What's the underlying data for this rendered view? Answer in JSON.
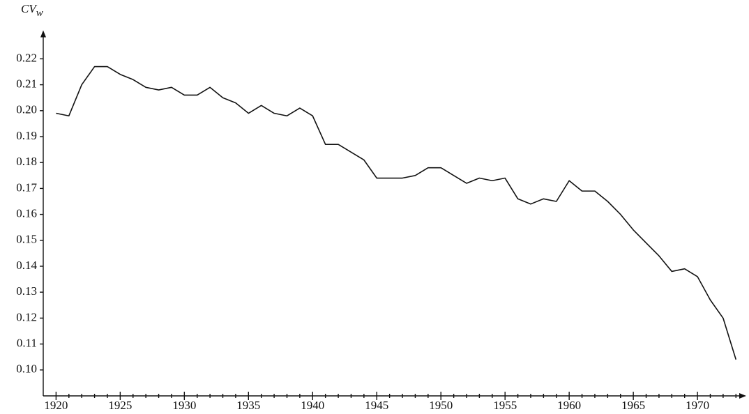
{
  "chart_data": {
    "type": "line",
    "ylabel": "CV",
    "ylabel_sub": "w",
    "x": [
      1920,
      1921,
      1922,
      1923,
      1924,
      1925,
      1926,
      1927,
      1928,
      1929,
      1930,
      1931,
      1932,
      1933,
      1934,
      1935,
      1936,
      1937,
      1938,
      1939,
      1940,
      1941,
      1942,
      1943,
      1944,
      1945,
      1946,
      1947,
      1948,
      1949,
      1950,
      1951,
      1952,
      1953,
      1954,
      1955,
      1956,
      1957,
      1958,
      1959,
      1960,
      1961,
      1962,
      1963,
      1964,
      1965,
      1966,
      1967,
      1968,
      1969,
      1970,
      1971,
      1972,
      1973
    ],
    "series": [
      {
        "color": "#111111",
        "values": [
          0.199,
          0.198,
          0.21,
          0.217,
          0.217,
          0.214,
          0.212,
          0.209,
          0.208,
          0.209,
          0.206,
          0.206,
          0.209,
          0.205,
          0.203,
          0.199,
          0.202,
          0.199,
          0.198,
          0.201,
          0.198,
          0.187,
          0.187,
          0.184,
          0.181,
          0.174,
          0.174,
          0.174,
          0.175,
          0.178,
          0.178,
          0.175,
          0.172,
          0.174,
          0.173,
          0.174,
          0.166,
          0.164,
          0.166,
          0.165,
          0.173,
          0.169,
          0.169,
          0.165,
          0.16,
          0.154,
          0.149,
          0.144,
          0.138,
          0.139,
          0.136,
          0.127,
          0.12,
          0.104
        ]
      }
    ],
    "xlim": [
      1919,
      1973.8
    ],
    "xticks": [
      1920,
      1925,
      1930,
      1935,
      1940,
      1945,
      1950,
      1955,
      1960,
      1965,
      1970
    ],
    "xminorticks": [
      1921,
      1922,
      1923,
      1924,
      1926,
      1927,
      1928,
      1929,
      1931,
      1932,
      1933,
      1934,
      1936,
      1937,
      1938,
      1939,
      1941,
      1942,
      1943,
      1944,
      1946,
      1947,
      1948,
      1949,
      1951,
      1952,
      1953,
      1954,
      1956,
      1957,
      1958,
      1959,
      1961,
      1962,
      1963,
      1964,
      1966,
      1967,
      1968,
      1969,
      1971,
      1972,
      1973
    ],
    "ylim": [
      0.09,
      0.231
    ],
    "yticks": [
      {
        "value": 0.1,
        "label": "0.10"
      },
      0.11,
      0.12,
      0.13,
      0.14,
      0.15,
      0.16,
      0.17,
      0.18,
      0.19,
      {
        "value": 0.2,
        "label": "0.20"
      },
      0.21,
      0.22
    ],
    "grid": false
  }
}
